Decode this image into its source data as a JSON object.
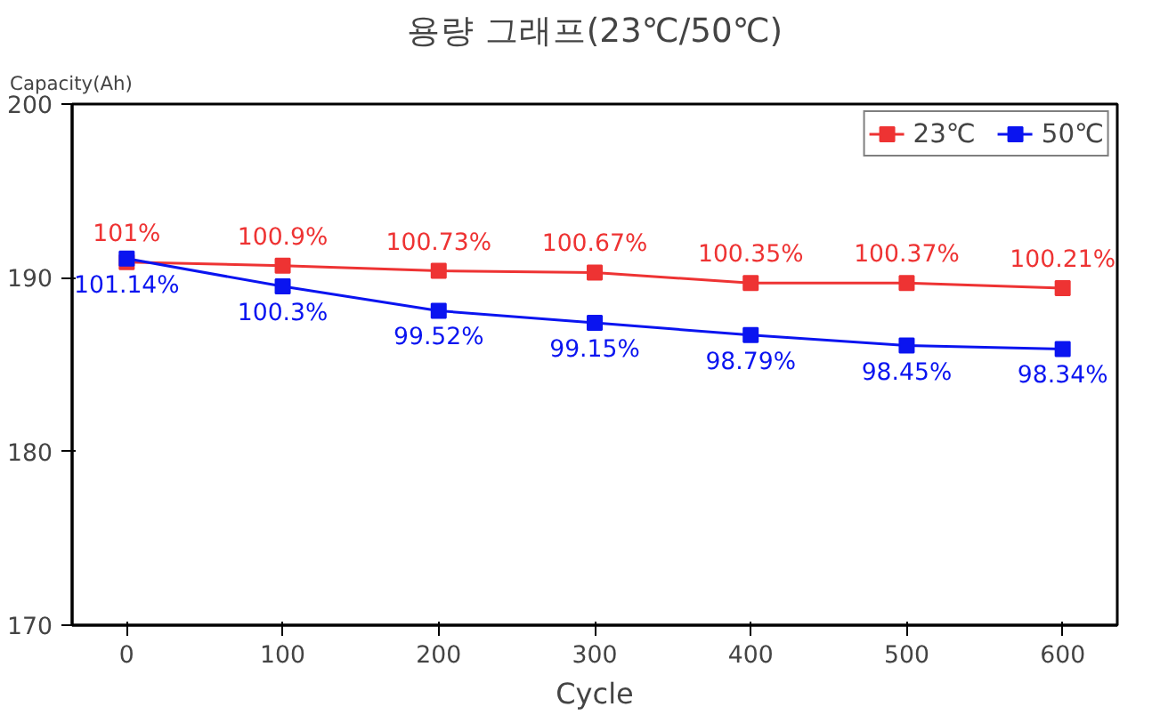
{
  "chart_data": {
    "type": "line",
    "title": "용량 그래프(23℃/50℃)",
    "xlabel": "Cycle",
    "ylabel": "Capacity(Ah)",
    "x": [
      0,
      100,
      200,
      300,
      400,
      500,
      600
    ],
    "series": [
      {
        "name": "23℃",
        "color": "#ee3333",
        "values": [
          190.9,
          190.7,
          190.4,
          190.3,
          189.7,
          189.7,
          189.4
        ]
      },
      {
        "name": "50℃",
        "color": "#0a14f0",
        "values": [
          191.1,
          189.5,
          188.1,
          187.4,
          186.7,
          186.1,
          185.9
        ]
      }
    ],
    "annotations": [
      {
        "text": "101%",
        "x": 0,
        "y": 190.9
      },
      {
        "text": "100.9%",
        "x": 100,
        "y": 190.7
      },
      {
        "text": "100.73%",
        "x": 200,
        "y": 190.4
      },
      {
        "text": "100.67%",
        "x": 300,
        "y": 190.3
      },
      {
        "text": "100.35%",
        "x": 400,
        "y": 189.7
      },
      {
        "text": "100.37%",
        "x": 500,
        "y": 189.7
      },
      {
        "text": "100.21%",
        "x": 600,
        "y": 189.4
      },
      {
        "text": "101.14%",
        "x": 0,
        "y": 191.1
      },
      {
        "text": "100.3%",
        "x": 100,
        "y": 189.5
      },
      {
        "text": "99.52%",
        "x": 200,
        "y": 188.1
      },
      {
        "text": "99.15%",
        "x": 300,
        "y": 187.4
      },
      {
        "text": "98.79%",
        "x": 400,
        "y": 186.7
      },
      {
        "text": "98.45%",
        "x": 500,
        "y": 186.1
      },
      {
        "text": "98.34%",
        "x": 600,
        "y": 185.9
      }
    ],
    "xlim": [
      -35,
      635
    ],
    "ylim": [
      170,
      200
    ],
    "xticks": [
      0,
      100,
      200,
      300,
      400,
      500,
      600
    ],
    "yticks": [
      170,
      180,
      190,
      200
    ],
    "grid": false,
    "legend": "top right",
    "marker": "square",
    "line_style": "solid"
  }
}
